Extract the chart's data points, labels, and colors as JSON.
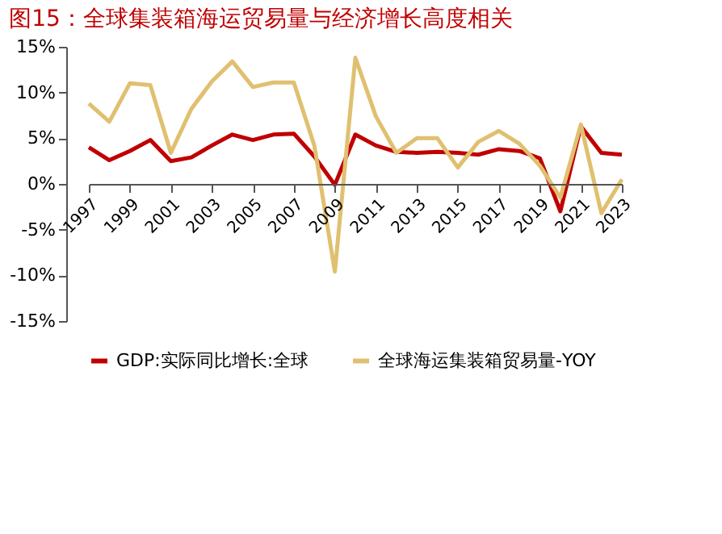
{
  "chart_data": {
    "type": "line",
    "title": "图15：全球集装箱海运贸易量与经济增长高度相关",
    "x": [
      1997,
      1998,
      1999,
      2000,
      2001,
      2002,
      2003,
      2004,
      2005,
      2006,
      2007,
      2008,
      2009,
      2010,
      2011,
      2012,
      2013,
      2014,
      2015,
      2016,
      2017,
      2018,
      2019,
      2020,
      2021,
      2022,
      2023
    ],
    "series": [
      {
        "name": "GDP:实际同比增长:全球",
        "color": "#c00000",
        "values": [
          4.0,
          2.6,
          3.6,
          4.8,
          2.5,
          2.9,
          4.2,
          5.4,
          4.8,
          5.4,
          5.5,
          3.0,
          -0.1,
          5.4,
          4.2,
          3.5,
          3.4,
          3.5,
          3.4,
          3.2,
          3.8,
          3.6,
          2.8,
          -3.0,
          6.3,
          3.4,
          3.2
        ]
      },
      {
        "name": "全球海运集装箱贸易量-YOY",
        "color": "#e0c070",
        "values": [
          8.8,
          6.8,
          11.0,
          10.8,
          3.4,
          8.2,
          11.2,
          13.4,
          10.6,
          11.1,
          11.1,
          4.2,
          -9.6,
          13.8,
          7.4,
          3.4,
          5.0,
          5.0,
          1.8,
          4.6,
          5.8,
          4.4,
          2.0,
          -1.5,
          6.5,
          -3.2,
          0.5
        ]
      }
    ],
    "xlim": [
      1997,
      2023
    ],
    "xticks": [
      1997,
      1999,
      2001,
      2003,
      2005,
      2007,
      2009,
      2011,
      2013,
      2015,
      2017,
      2019,
      2021,
      2023
    ],
    "ylim": [
      -15,
      15
    ],
    "yticks": [
      {
        "value": -15,
        "label": "-15%"
      },
      {
        "value": -10,
        "label": "-10%"
      },
      {
        "value": -5,
        "label": "-5%"
      },
      {
        "value": 0,
        "label": "0%"
      },
      {
        "value": 5,
        "label": "5%"
      },
      {
        "value": 10,
        "label": "10%"
      },
      {
        "value": 15,
        "label": "15%"
      }
    ],
    "grid": false,
    "legend": "bottom",
    "marker": "none",
    "line_style": "solid"
  }
}
